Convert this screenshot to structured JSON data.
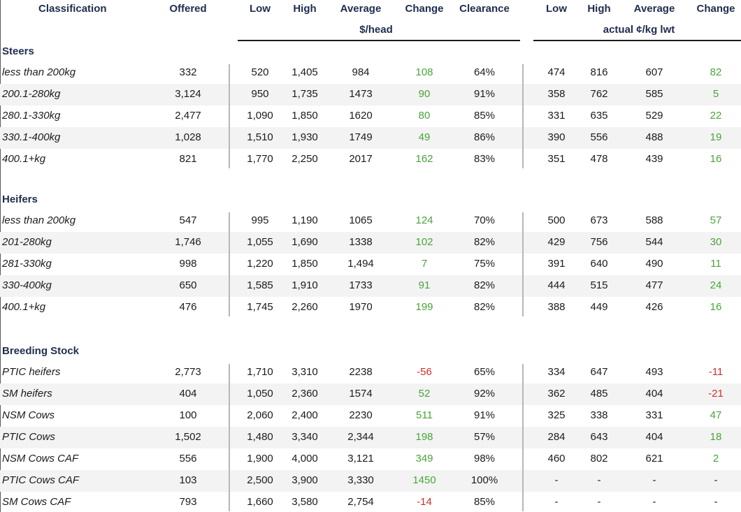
{
  "headers": {
    "classification": "Classification",
    "offered": "Offered",
    "low": "Low",
    "high": "High",
    "average": "Average",
    "change": "Change",
    "clearance": "Clearance",
    "low2": "Low",
    "high2": "High",
    "average2": "Average",
    "change2": "Change",
    "unit_head": "$/head",
    "unit_kg": "actual ¢/kg lwt"
  },
  "sections": [
    {
      "title": "Steers",
      "rows": [
        {
          "label": "less than 200kg",
          "offered": "332",
          "low": "520",
          "high": "1,405",
          "avg": "984",
          "change": "108",
          "clearance": "64%",
          "low2": "474",
          "high2": "816",
          "avg2": "607",
          "change2": "82"
        },
        {
          "label": "200.1-280kg",
          "offered": "3,124",
          "low": "950",
          "high": "1,735",
          "avg": "1473",
          "change": "90",
          "clearance": "91%",
          "low2": "358",
          "high2": "762",
          "avg2": "585",
          "change2": "5"
        },
        {
          "label": "280.1-330kg",
          "offered": "2,477",
          "low": "1,090",
          "high": "1,850",
          "avg": "1620",
          "change": "80",
          "clearance": "85%",
          "low2": "331",
          "high2": "635",
          "avg2": "529",
          "change2": "22"
        },
        {
          "label": "330.1-400kg",
          "offered": "1,028",
          "low": "1,510",
          "high": "1,930",
          "avg": "1749",
          "change": "49",
          "clearance": "86%",
          "low2": "390",
          "high2": "556",
          "avg2": "488",
          "change2": "19"
        },
        {
          "label": "400.1+kg",
          "offered": "821",
          "low": "1,770",
          "high": "2,250",
          "avg": "2017",
          "change": "162",
          "clearance": "83%",
          "low2": "351",
          "high2": "478",
          "avg2": "439",
          "change2": "16"
        }
      ]
    },
    {
      "title": "Heifers",
      "rows": [
        {
          "label": "less than 200kg",
          "offered": "547",
          "low": "995",
          "high": "1,190",
          "avg": "1065",
          "change": "124",
          "clearance": "70%",
          "low2": "500",
          "high2": "673",
          "avg2": "588",
          "change2": "57"
        },
        {
          "label": "201-280kg",
          "offered": "1,746",
          "low": "1,055",
          "high": "1,690",
          "avg": "1338",
          "change": "102",
          "clearance": "82%",
          "low2": "429",
          "high2": "756",
          "avg2": "544",
          "change2": "30"
        },
        {
          "label": "281-330kg",
          "offered": "998",
          "low": "1,220",
          "high": "1,850",
          "avg": "1,494",
          "change": "7",
          "clearance": "75%",
          "low2": "391",
          "high2": "640",
          "avg2": "490",
          "change2": "11"
        },
        {
          "label": "330-400kg",
          "offered": "650",
          "low": "1,585",
          "high": "1,910",
          "avg": "1733",
          "change": "91",
          "clearance": "82%",
          "low2": "444",
          "high2": "515",
          "avg2": "477",
          "change2": "24"
        },
        {
          "label": "400.1+kg",
          "offered": "476",
          "low": "1,745",
          "high": "2,260",
          "avg": "1970",
          "change": "199",
          "clearance": "82%",
          "low2": "388",
          "high2": "449",
          "avg2": "426",
          "change2": "16"
        }
      ]
    },
    {
      "title": "Breeding Stock",
      "rows": [
        {
          "label": "PTIC heifers",
          "offered": "2,773",
          "low": "1,710",
          "high": "3,310",
          "avg": "2238",
          "change": "-56",
          "clearance": "65%",
          "low2": "334",
          "high2": "647",
          "avg2": "493",
          "change2": "-11"
        },
        {
          "label": "SM heifers",
          "offered": "404",
          "low": "1,050",
          "high": "2,360",
          "avg": "1574",
          "change": "52",
          "clearance": "92%",
          "low2": "362",
          "high2": "485",
          "avg2": "404",
          "change2": "-21"
        },
        {
          "label": "NSM Cows",
          "offered": "100",
          "low": "2,060",
          "high": "2,400",
          "avg": "2230",
          "change": "511",
          "clearance": "91%",
          "low2": "325",
          "high2": "338",
          "avg2": "331",
          "change2": "47"
        },
        {
          "label": "PTIC Cows",
          "offered": "1,502",
          "low": "1,480",
          "high": "3,340",
          "avg": "2,344",
          "change": "198",
          "clearance": "57%",
          "low2": "284",
          "high2": "643",
          "avg2": "404",
          "change2": "18"
        },
        {
          "label": "NSM Cows CAF",
          "offered": "556",
          "low": "1,900",
          "high": "4,000",
          "avg": "3,121",
          "change": "349",
          "clearance": "98%",
          "low2": "460",
          "high2": "802",
          "avg2": "621",
          "change2": "2"
        },
        {
          "label": "PTIC Cows CAF",
          "offered": "103",
          "low": "2,500",
          "high": "3,900",
          "avg": "3,330",
          "change": "1450",
          "clearance": "100%",
          "low2": "-",
          "high2": "-",
          "avg2": "-",
          "change2": "-"
        },
        {
          "label": "SM Cows CAF",
          "offered": "793",
          "low": "1,660",
          "high": "3,580",
          "avg": "2,754",
          "change": "-14",
          "clearance": "85%",
          "low2": "-",
          "high2": "-",
          "avg2": "-",
          "change2": "-"
        }
      ]
    }
  ],
  "colors": {
    "header_text": "#1f2d4e",
    "positive_change": "#4aa43a",
    "negative_change": "#d0302c",
    "row_band": "#f3f3f3"
  }
}
